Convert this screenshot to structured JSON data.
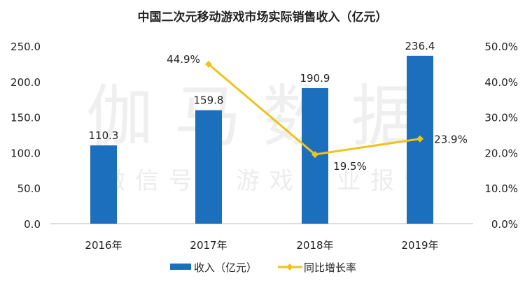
{
  "chart_data": {
    "type": "bar+line",
    "title": "中国二次元移动游戏市场实际销售收入（亿元）",
    "categories": [
      "2016年",
      "2017年",
      "2018年",
      "2019年"
    ],
    "series": [
      {
        "name": "收入（亿元）",
        "type": "bar",
        "axis": "left",
        "values": [
          110.3,
          159.8,
          190.9,
          236.4
        ],
        "labels": [
          "110.3",
          "159.8",
          "190.9",
          "236.4"
        ],
        "color": "#1c6fbc"
      },
      {
        "name": "同比增长率",
        "type": "line",
        "axis": "right",
        "values": [
          null,
          44.9,
          19.5,
          23.9
        ],
        "labels": [
          "",
          "44.9%",
          "19.5%",
          "23.9%"
        ],
        "color": "#f2c21a"
      }
    ],
    "y_left": {
      "range": [
        0,
        250
      ],
      "ticks": [
        "0.0",
        "50.0",
        "100.0",
        "150.0",
        "200.0",
        "250.0"
      ]
    },
    "y_right": {
      "range": [
        0,
        50
      ],
      "ticks": [
        "0.0%",
        "10.0%",
        "20.0%",
        "30.0%",
        "40.0%",
        "50.0%"
      ]
    },
    "grid": false,
    "legend": "bottom"
  },
  "watermark": {
    "main": "伽马数据",
    "sub": "微信号：游戏产业报告"
  }
}
